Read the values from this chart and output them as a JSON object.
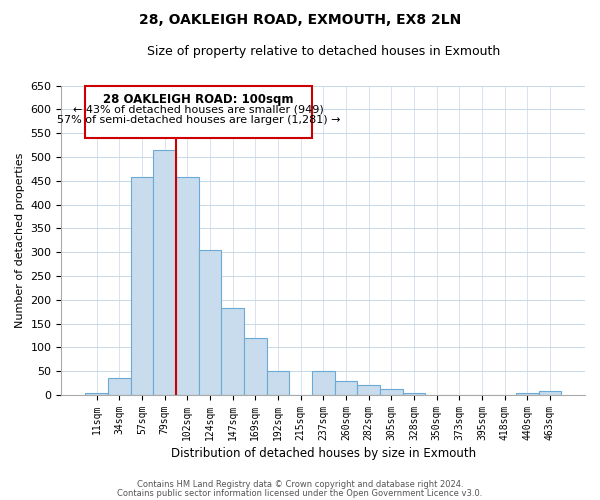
{
  "title": "28, OAKLEIGH ROAD, EXMOUTH, EX8 2LN",
  "subtitle": "Size of property relative to detached houses in Exmouth",
  "xlabel": "Distribution of detached houses by size in Exmouth",
  "ylabel": "Number of detached properties",
  "bar_labels": [
    "11sqm",
    "34sqm",
    "57sqm",
    "79sqm",
    "102sqm",
    "124sqm",
    "147sqm",
    "169sqm",
    "192sqm",
    "215sqm",
    "237sqm",
    "260sqm",
    "282sqm",
    "305sqm",
    "328sqm",
    "350sqm",
    "373sqm",
    "395sqm",
    "418sqm",
    "440sqm",
    "463sqm"
  ],
  "bar_values": [
    5,
    35,
    458,
    515,
    458,
    305,
    183,
    119,
    50,
    0,
    50,
    30,
    22,
    13,
    5,
    0,
    0,
    0,
    0,
    5,
    8
  ],
  "bar_color": "#c8dced",
  "bar_edge_color": "#6aaad4",
  "vline_color": "#cc0000",
  "ylim": [
    0,
    650
  ],
  "yticks": [
    0,
    50,
    100,
    150,
    200,
    250,
    300,
    350,
    400,
    450,
    500,
    550,
    600,
    650
  ],
  "annotation_title": "28 OAKLEIGH ROAD: 100sqm",
  "annotation_line1": "← 43% of detached houses are smaller (949)",
  "annotation_line2": "57% of semi-detached houses are larger (1,281) →",
  "annotation_box_color": "#ffffff",
  "annotation_box_edge": "#cc0000",
  "footer1": "Contains HM Land Registry data © Crown copyright and database right 2024.",
  "footer2": "Contains public sector information licensed under the Open Government Licence v3.0.",
  "bg_color": "#ffffff",
  "grid_color": "#c8d8e8"
}
